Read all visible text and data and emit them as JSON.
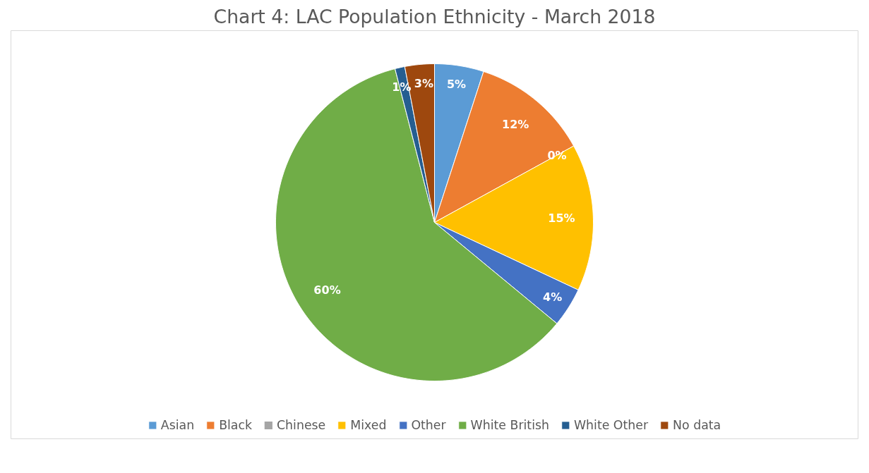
{
  "chart_data": {
    "type": "pie",
    "title": "Chart 4: LAC Population Ethnicity - March 2018",
    "categories": [
      "Asian",
      "Black",
      "Chinese",
      "Mixed",
      "Other",
      "White British",
      "White Other",
      "No data"
    ],
    "values": [
      5,
      12,
      0,
      15,
      4,
      60,
      1,
      3
    ],
    "colors": [
      "#5b9bd5",
      "#ed7d31",
      "#a5a5a5",
      "#ffc000",
      "#4472c4",
      "#70ad47",
      "#255e91",
      "#9e480e"
    ],
    "value_labels": [
      "5%",
      "12%",
      "0%",
      "15%",
      "4%",
      "60%",
      "1%",
      "3%"
    ],
    "legend": "bottom"
  }
}
